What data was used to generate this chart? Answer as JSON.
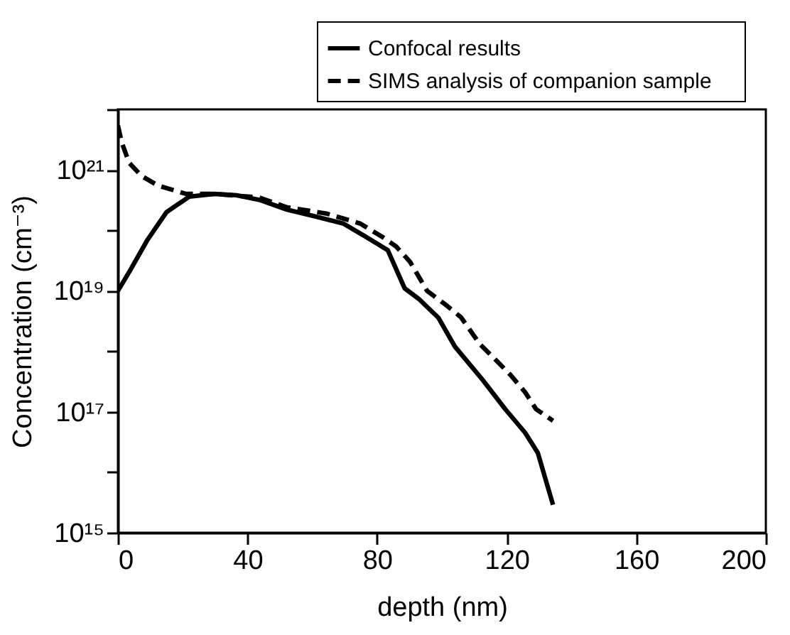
{
  "chart_data": {
    "type": "line",
    "xlabel": "depth (nm)",
    "ylabel": "Concentration (cm⁻³)",
    "log": "y",
    "xlim": [
      0,
      200
    ],
    "xticks": [
      0,
      40,
      80,
      120,
      160,
      200
    ],
    "ylim": [
      1000000000000000.0,
      1e+22
    ],
    "yticks": [
      {
        "value": 1000000000000000.0,
        "label": "10¹⁵"
      },
      {
        "value": 1e+16,
        "label": null
      },
      {
        "value": 1e+17,
        "label": "10¹⁷"
      },
      {
        "value": 1e+18,
        "label": null
      },
      {
        "value": 1e+19,
        "label": "10¹⁹"
      },
      {
        "value": 1e+20,
        "label": null
      },
      {
        "value": 1e+21,
        "label": "10²¹"
      },
      {
        "value": 1e+22,
        "label": null
      }
    ],
    "grid": false,
    "legend": "top right",
    "marker": "none",
    "series": [
      {
        "name": "Confocal  results",
        "color": "#000000",
        "line_style": "solid",
        "x": [
          0,
          3.8,
          9,
          15,
          22,
          29.7,
          36.6,
          43.6,
          52.2,
          60.8,
          69.5,
          76.4,
          83.3,
          88.5,
          92.8,
          98.9,
          104,
          112.7,
          119.6,
          125.7,
          129.6,
          134.3
        ],
        "values": [
          1e+19,
          2.2e+19,
          6.8e+19,
          2e+20,
          3.6e+20,
          4e+20,
          3.8e+20,
          3.2e+20,
          2.2e+20,
          1.7e+20,
          1.3e+20,
          7.9e+19,
          4.7e+19,
          1.1e+19,
          7.4e+18,
          3.6e+18,
          1.2e+18,
          3.3e+17,
          1.1e+17,
          4.5e+16,
          2.1e+16,
          2900000000000000.0
        ]
      },
      {
        "name": "SIMS  analysis  of  companion  sample",
        "color": "#000000",
        "line_style": "dashed",
        "x": [
          0,
          1.2,
          3.5,
          7.3,
          12.4,
          21,
          29.7,
          43.6,
          52.2,
          64.3,
          74.7,
          81.6,
          85.9,
          90.2,
          95.4,
          100.6,
          105.8,
          111.8,
          116.2,
          121.3,
          125.7,
          129.1,
          134.3
        ],
        "values": [
          5.4e+21,
          2.8e+21,
          1.3e+21,
          7.9e+20,
          5.5e+20,
          4e+20,
          4e+20,
          3.5e+20,
          2.4e+20,
          1.9e+20,
          1.3e+20,
          7.8e+19,
          5.4e+19,
          3e+19,
          1e+19,
          6.2e+18,
          3.7e+18,
          1.3e+18,
          7.6e+17,
          4e+17,
          2.1e+17,
          1.1e+17,
          7.1e+16
        ]
      }
    ]
  }
}
